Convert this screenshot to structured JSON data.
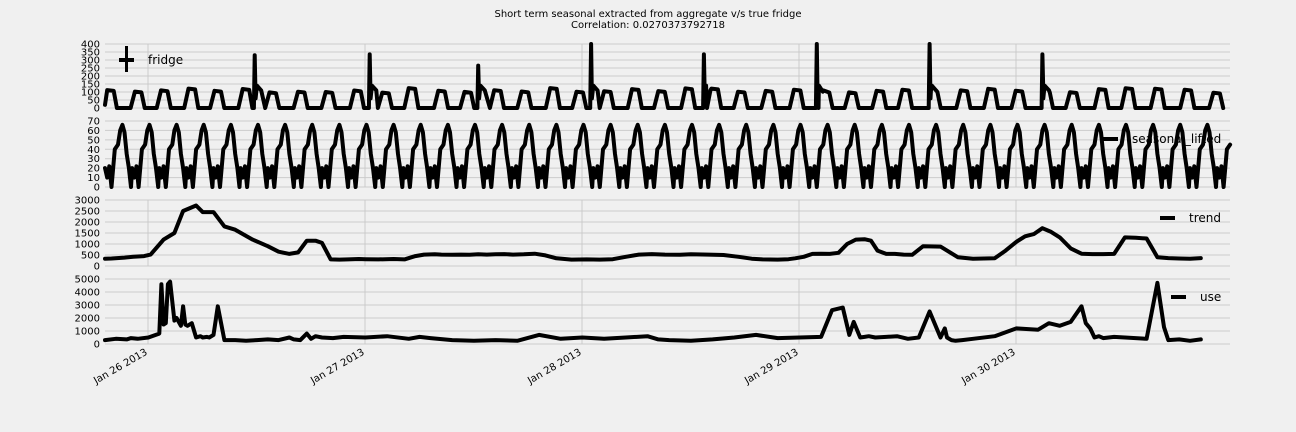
{
  "title": [
    "Short term seasonal extracted from aggregate v/s true fridge",
    "Correlation: 0.0270373792718"
  ],
  "x_ticks": [
    "Jan 26 2013",
    "Jan 27 2013",
    "Jan 28 2013",
    "Jan 29 2013",
    "Jan 30 2013"
  ],
  "colors": {
    "background": "#f0f0f0",
    "grid": "#cbcbcb",
    "line": "#000000"
  },
  "chart_data": [
    {
      "type": "line",
      "series": [
        {
          "name": "fridge",
          "values": "periodic fridge cycles (~100-140 W) with defrost spikes up to ~400"
        }
      ],
      "x_range": [
        "2013-01-25 22:30",
        "2013-01-30 23:59"
      ],
      "ylim": [
        0,
        400
      ],
      "yticks": [
        0,
        50,
        100,
        150,
        200,
        250,
        300,
        350,
        400
      ],
      "legend": "top-left",
      "legend_label": "fridge",
      "grid": true
    },
    {
      "type": "line",
      "series": [
        {
          "name": "seasonal_lifted",
          "values": "repeating seasonal pattern 0-65"
        }
      ],
      "x_range": [
        "2013-01-25 22:30",
        "2013-01-30 23:59"
      ],
      "ylim": [
        0,
        70
      ],
      "yticks": [
        0,
        10,
        20,
        30,
        40,
        50,
        60,
        70
      ],
      "legend": "top-right",
      "legend_label": "seasonal_lifted",
      "grid": true
    },
    {
      "type": "line",
      "series": [
        {
          "name": "trend",
          "x": [
            0,
            0.03,
            0.09,
            0.13,
            0.18,
            0.21,
            0.27,
            0.32,
            0.36,
            0.42,
            0.45,
            0.5,
            0.55,
            0.6,
            0.68,
            0.75,
            0.8,
            0.85,
            0.89,
            0.93,
            0.97,
            1.0,
            1.04,
            1.08,
            1.12,
            1.17,
            1.2,
            1.26,
            1.33,
            1.38,
            1.43,
            1.47,
            1.52,
            1.55,
            1.6,
            1.64,
            1.68,
            1.72,
            1.76,
            1.8,
            1.84,
            1.88,
            1.93,
            1.98,
            2.03,
            2.08,
            2.15,
            2.22,
            2.28,
            2.34,
            2.4,
            2.46,
            2.52,
            2.58,
            2.65,
            2.7,
            2.78,
            2.85,
            2.92,
            2.98,
            3.03,
            3.1,
            3.15,
            3.18,
            3.22,
            3.26,
            3.3,
            3.34,
            3.38,
            3.42,
            3.46,
            3.5,
            3.53,
            3.56,
            3.6,
            3.64,
            3.68,
            3.72,
            3.77,
            3.85,
            3.93,
            4.0,
            4.05,
            4.1,
            4.15,
            4.2,
            4.24,
            4.28,
            4.32,
            4.36,
            4.4,
            4.45,
            4.5,
            4.55,
            4.6,
            4.65,
            4.7,
            4.75,
            4.8,
            4.85,
            4.9,
            4.95,
            5.0,
            5.05
          ],
          "values": [
            330,
            340,
            380,
            420,
            450,
            520,
            1200,
            1500,
            2500,
            2750,
            2450,
            2450,
            1800,
            1650,
            1200,
            900,
            650,
            550,
            620,
            1150,
            1150,
            1050,
            300,
            290,
            300,
            320,
            310,
            300,
            320,
            300,
            450,
            520,
            530,
            520,
            510,
            520,
            510,
            530,
            520,
            530,
            540,
            520,
            530,
            560,
            480,
            350,
            290,
            300,
            290,
            310,
            420,
            520,
            540,
            520,
            510,
            530,
            520,
            500,
            420,
            330,
            300,
            290,
            310,
            350,
            420,
            550,
            560,
            550,
            600,
            1000,
            1200,
            1220,
            1150,
            700,
            550,
            550,
            520,
            510,
            900,
            880,
            400,
            330,
            340,
            350,
            700,
            1100,
            1350,
            1450,
            1720,
            1550,
            1300,
            800,
            560,
            540,
            540,
            550,
            1300,
            1280,
            1250,
            400,
            360,
            340,
            330,
            360
          ]
        }
      ],
      "x_range": [
        "2013-01-25 22:30",
        "2013-01-30 23:59"
      ],
      "ylim": [
        0,
        3000
      ],
      "yticks": [
        0,
        500,
        1000,
        1500,
        2000,
        2500,
        3000
      ],
      "legend": "top-right",
      "legend_label": "trend",
      "grid": true
    },
    {
      "type": "line",
      "series": [
        {
          "name": "use",
          "x": [
            0,
            0.05,
            0.1,
            0.12,
            0.15,
            0.2,
            0.25,
            0.26,
            0.27,
            0.28,
            0.29,
            0.3,
            0.32,
            0.33,
            0.35,
            0.36,
            0.37,
            0.38,
            0.4,
            0.42,
            0.44,
            0.45,
            0.47,
            0.48,
            0.5,
            0.52,
            0.55,
            0.6,
            0.65,
            0.7,
            0.75,
            0.8,
            0.85,
            0.87,
            0.9,
            0.93,
            0.95,
            0.97,
            1.0,
            1.05,
            1.1,
            1.2,
            1.3,
            1.4,
            1.45,
            1.5,
            1.6,
            1.7,
            1.8,
            1.9,
            2.0,
            2.1,
            2.2,
            2.3,
            2.4,
            2.5,
            2.55,
            2.6,
            2.7,
            2.8,
            2.9,
            3.0,
            3.1,
            3.2,
            3.3,
            3.35,
            3.4,
            3.43,
            3.45,
            3.48,
            3.5,
            3.52,
            3.55,
            3.6,
            3.65,
            3.7,
            3.75,
            3.8,
            3.85,
            3.87,
            3.88,
            3.9,
            3.92,
            3.95,
            4.0,
            4.1,
            4.2,
            4.3,
            4.35,
            4.4,
            4.45,
            4.5,
            4.52,
            4.54,
            4.56,
            4.58,
            4.6,
            4.65,
            4.7,
            4.8,
            4.85,
            4.88,
            4.9,
            4.95,
            5.0,
            5.05
          ],
          "values": [
            300,
            400,
            350,
            450,
            400,
            500,
            800,
            4600,
            1500,
            1600,
            4600,
            4800,
            1800,
            2000,
            1400,
            2900,
            1500,
            1400,
            1600,
            500,
            600,
            500,
            550,
            500,
            700,
            2900,
            300,
            300,
            250,
            300,
            350,
            300,
            500,
            350,
            300,
            800,
            400,
            600,
            500,
            450,
            550,
            500,
            600,
            400,
            550,
            450,
            300,
            250,
            300,
            250,
            700,
            400,
            500,
            400,
            500,
            600,
            350,
            300,
            250,
            350,
            500,
            700,
            450,
            500,
            550,
            2600,
            2800,
            700,
            1700,
            500,
            550,
            600,
            500,
            550,
            600,
            400,
            500,
            2500,
            500,
            1200,
            500,
            300,
            250,
            300,
            400,
            600,
            1200,
            1100,
            1600,
            1400,
            1700,
            2900,
            1600,
            1200,
            500,
            600,
            450,
            550,
            500,
            400,
            4700,
            1300,
            300,
            350,
            250,
            350
          ]
        }
      ],
      "x_range": [
        "2013-01-25 22:30",
        "2013-01-30 23:59"
      ],
      "ylim": [
        0,
        5000
      ],
      "yticks": [
        0,
        1000,
        2000,
        3000,
        4000,
        5000
      ],
      "legend": "top-right",
      "legend_label": "use",
      "grid": true
    }
  ]
}
